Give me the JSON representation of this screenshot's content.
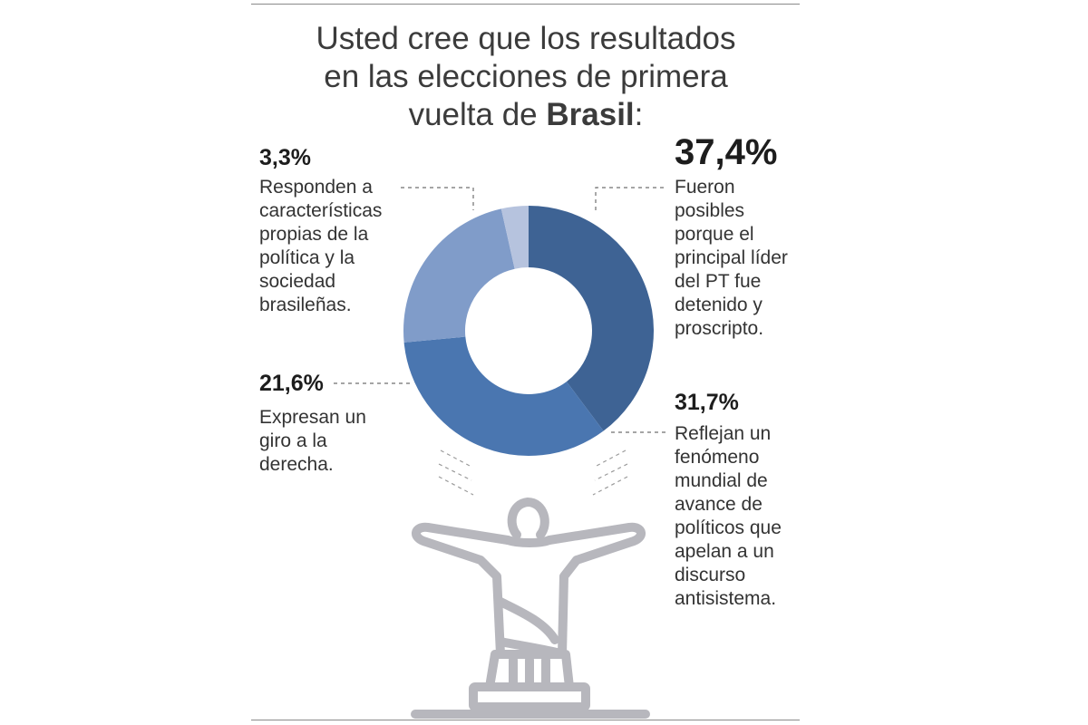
{
  "title": {
    "line1": "Usted cree que  los resultados",
    "line2": "en las elecciones de primera",
    "line3_prefix": "vuelta de ",
    "line3_bold": "Brasil",
    "line3_suffix": ":"
  },
  "chart_data": {
    "type": "pie",
    "variant": "donut",
    "slices": [
      {
        "label": "37,4%",
        "value": 37.4,
        "description": "Fueron posibles porque el principal líder del PT fue detenido y proscripto.",
        "color": "#3e6394"
      },
      {
        "label": "31,7%",
        "value": 31.7,
        "description": "Reflejan un fenómeno mundial de avance de políticos que apelan a un discurso antisistema.",
        "color": "#4a76b0"
      },
      {
        "label": "21,6%",
        "value": 21.6,
        "description": "Expresan un giro a la derecha.",
        "color": "#809cc9"
      },
      {
        "label": "3,3%",
        "value": 3.3,
        "description": "Responden a características propias de la política y la sociedad brasileñas.",
        "color": "#b6c3de"
      }
    ]
  },
  "icons": {
    "statue": "christ-the-redeemer-icon"
  }
}
